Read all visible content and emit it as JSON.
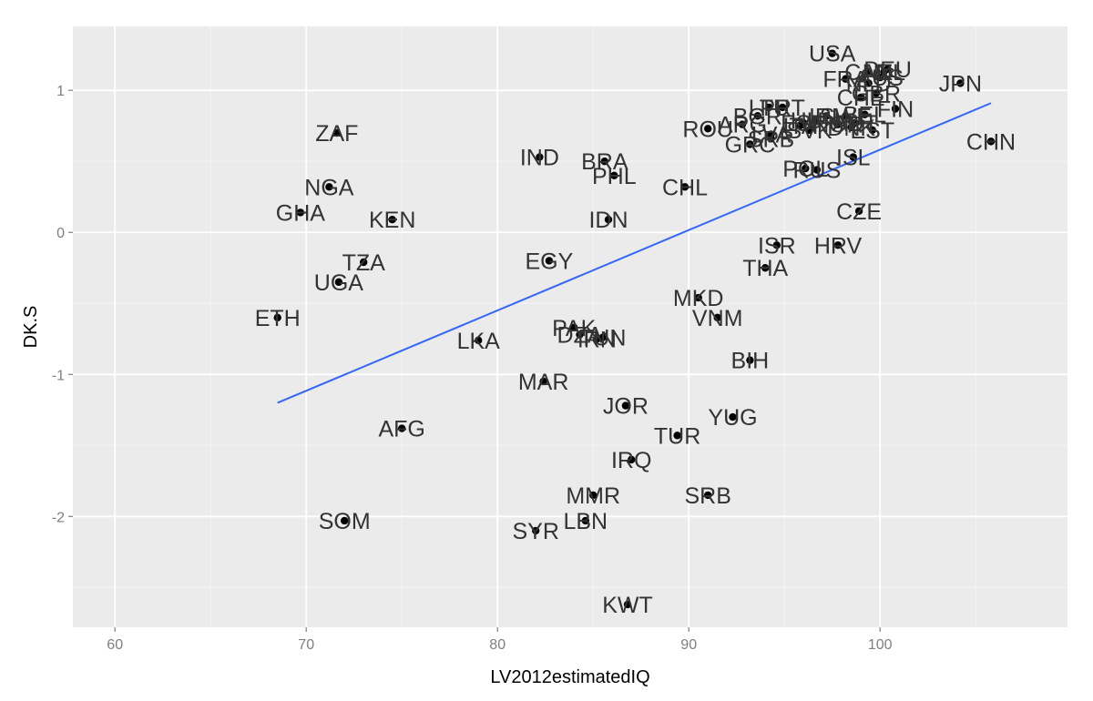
{
  "chart_data": {
    "type": "scatter",
    "xlabel": "LV2012estimatedIQ",
    "ylabel": "DK.S",
    "xlim": [
      57.8,
      109.8
    ],
    "ylim": [
      -2.78,
      1.45
    ],
    "x_ticks": [
      60,
      70,
      80,
      90,
      100
    ],
    "y_ticks": [
      -2,
      -1,
      0,
      1
    ],
    "x_tick_labels": [
      "60",
      "70",
      "80",
      "90",
      "100"
    ],
    "y_tick_labels": [
      "-2",
      "-1",
      "0",
      "1"
    ],
    "background": "#ebebeb",
    "grid": true,
    "point_color": "#000000",
    "label_color": "#333333",
    "fit_line": {
      "color": "#3366ff",
      "x": [
        68.5,
        105.8
      ],
      "y": [
        -1.2,
        0.91
      ]
    },
    "points": [
      {
        "label": "USA",
        "x": 97.5,
        "y": 1.26
      },
      {
        "label": "JPN",
        "x": 104.2,
        "y": 1.05
      },
      {
        "label": "CHN",
        "x": 105.8,
        "y": 0.64
      },
      {
        "label": "FRA",
        "x": 98.2,
        "y": 1.08
      },
      {
        "label": "NLD",
        "x": 99.4,
        "y": 1.05
      },
      {
        "label": "FIN",
        "x": 100.8,
        "y": 0.87
      },
      {
        "label": "EST",
        "x": 99.6,
        "y": 0.72
      },
      {
        "label": "ISL",
        "x": 98.6,
        "y": 0.53
      },
      {
        "label": "SVK",
        "x": 96.3,
        "y": 0.72
      },
      {
        "label": "ROU",
        "x": 91.0,
        "y": 0.73
      },
      {
        "label": "GRC",
        "x": 93.2,
        "y": 0.62
      },
      {
        "label": "RUS",
        "x": 96.7,
        "y": 0.44
      },
      {
        "label": "POL",
        "x": 96.1,
        "y": 0.45
      },
      {
        "label": "CZE",
        "x": 98.9,
        "y": 0.15
      },
      {
        "label": "HRV",
        "x": 97.8,
        "y": -0.09
      },
      {
        "label": "ISR",
        "x": 94.6,
        "y": -0.09
      },
      {
        "label": "THA",
        "x": 94.0,
        "y": -0.25
      },
      {
        "label": "MKD",
        "x": 90.5,
        "y": -0.46
      },
      {
        "label": "VNM",
        "x": 91.5,
        "y": -0.6
      },
      {
        "label": "BIH",
        "x": 93.2,
        "y": -0.9
      },
      {
        "label": "YUG",
        "x": 92.3,
        "y": -1.3
      },
      {
        "label": "TUR",
        "x": 89.4,
        "y": -1.43
      },
      {
        "label": "SRB",
        "x": 91.0,
        "y": -1.85
      },
      {
        "label": "JOR",
        "x": 86.7,
        "y": -1.22
      },
      {
        "label": "IRQ",
        "x": 87.0,
        "y": -1.6
      },
      {
        "label": "MMR",
        "x": 85.0,
        "y": -1.85
      },
      {
        "label": "LBN",
        "x": 84.6,
        "y": -2.03
      },
      {
        "label": "SYR",
        "x": 82.0,
        "y": -2.1
      },
      {
        "label": "KWT",
        "x": 86.8,
        "y": -2.62
      },
      {
        "label": "MAR",
        "x": 82.4,
        "y": -1.05
      },
      {
        "label": "PAK",
        "x": 84.0,
        "y": -0.67
      },
      {
        "label": "DZA",
        "x": 84.3,
        "y": -0.72
      },
      {
        "label": "IRN",
        "x": 85.2,
        "y": -0.75
      },
      {
        "label": "TUN",
        "x": 85.5,
        "y": -0.74
      },
      {
        "label": "LKA",
        "x": 79.0,
        "y": -0.76
      },
      {
        "label": "EGY",
        "x": 82.7,
        "y": -0.2
      },
      {
        "label": "IDN",
        "x": 85.8,
        "y": 0.09
      },
      {
        "label": "CHL",
        "x": 89.8,
        "y": 0.32
      },
      {
        "label": "PHL",
        "x": 86.1,
        "y": 0.4
      },
      {
        "label": "BRA",
        "x": 85.6,
        "y": 0.5
      },
      {
        "label": "IND",
        "x": 82.2,
        "y": 0.53
      },
      {
        "label": "ZAF",
        "x": 71.6,
        "y": 0.7
      },
      {
        "label": "NGA",
        "x": 71.2,
        "y": 0.32
      },
      {
        "label": "GHA",
        "x": 69.7,
        "y": 0.14
      },
      {
        "label": "KEN",
        "x": 74.5,
        "y": 0.09
      },
      {
        "label": "TZA",
        "x": 73.0,
        "y": -0.21
      },
      {
        "label": "UGA",
        "x": 71.7,
        "y": -0.35
      },
      {
        "label": "ETH",
        "x": 68.5,
        "y": -0.6
      },
      {
        "label": "AFG",
        "x": 75.0,
        "y": -1.38
      },
      {
        "label": "SOM",
        "x": 72.0,
        "y": -2.03
      },
      {
        "label": "ARG",
        "x": 92.8,
        "y": 0.76
      },
      {
        "label": "BGR",
        "x": 93.6,
        "y": 0.82
      },
      {
        "label": "LTU",
        "x": 94.2,
        "y": 0.88
      },
      {
        "label": "LVA",
        "x": 94.3,
        "y": 0.69
      },
      {
        "label": "SRB2",
        "x": 94.3,
        "y": 0.66
      },
      {
        "label": "PRT",
        "x": 94.9,
        "y": 0.88
      },
      {
        "label": "ITA",
        "x": 95.8,
        "y": 0.75
      },
      {
        "label": "ESP",
        "x": 96.0,
        "y": 0.77
      },
      {
        "label": "HUN",
        "x": 96.6,
        "y": 0.79
      },
      {
        "label": "IRL",
        "x": 97.2,
        "y": 0.82
      },
      {
        "label": "NOR",
        "x": 97.8,
        "y": 0.76
      },
      {
        "label": "SWE",
        "x": 98.2,
        "y": 0.82
      },
      {
        "label": "DNK",
        "x": 98.5,
        "y": 0.74
      },
      {
        "label": "AUT",
        "x": 98.7,
        "y": 0.77
      },
      {
        "label": "BEL",
        "x": 99.2,
        "y": 0.83
      },
      {
        "label": "CAN",
        "x": 99.4,
        "y": 1.13
      },
      {
        "label": "GBR",
        "x": 99.8,
        "y": 0.98
      },
      {
        "label": "AUS",
        "x": 100.0,
        "y": 1.09
      },
      {
        "label": "NZL",
        "x": 100.2,
        "y": 1.13
      },
      {
        "label": "DEU",
        "x": 100.4,
        "y": 1.15
      },
      {
        "label": "CHE",
        "x": 99.0,
        "y": 0.95
      }
    ]
  }
}
